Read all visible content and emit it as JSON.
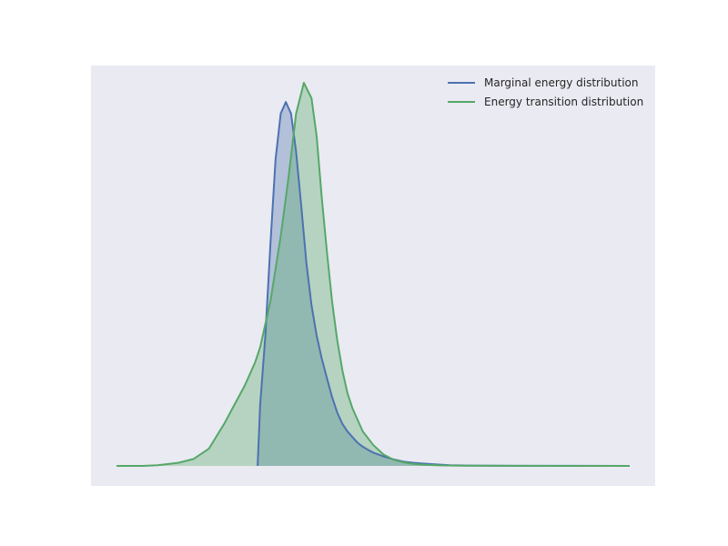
{
  "chart_data": {
    "type": "area",
    "title": "",
    "xlabel": "",
    "ylabel": "",
    "x_ticks_shown": false,
    "y_ticks_shown": false,
    "grid": false,
    "legend_position": "top-right",
    "background": "#eaeaf2",
    "xlim": [
      0,
      100
    ],
    "ylim": [
      0,
      1.05
    ],
    "series": [
      {
        "name": "Marginal energy distribution",
        "color": "#4c72b0",
        "fill": "#4c72b0",
        "fill_opacity": 0.35,
        "x": [
          27.5,
          28.0,
          29.0,
          30.0,
          31.0,
          32.0,
          33.0,
          34.0,
          35.0,
          36.0,
          37.0,
          38.0,
          39.0,
          40.0,
          41.0,
          42.0,
          43.0,
          44.0,
          45.0,
          46.0,
          47.0,
          48.0,
          49.0,
          50.0,
          52.0,
          54.0,
          56.0,
          58.0,
          60.0,
          62.0,
          65.0,
          68.0,
          72.0,
          77.0,
          85.0,
          100.0
        ],
        "y": [
          0.0,
          0.16,
          0.34,
          0.58,
          0.8,
          0.92,
          0.95,
          0.92,
          0.82,
          0.68,
          0.53,
          0.42,
          0.34,
          0.28,
          0.23,
          0.18,
          0.14,
          0.11,
          0.09,
          0.075,
          0.06,
          0.05,
          0.042,
          0.035,
          0.025,
          0.017,
          0.011,
          0.008,
          0.006,
          0.004,
          0.002,
          0.001,
          0.0005,
          0.0003,
          0.0002,
          0.0
        ]
      },
      {
        "name": "Energy transition distribution",
        "color": "#55a868",
        "fill": "#55a868",
        "fill_opacity": 0.35,
        "x": [
          0.0,
          5.0,
          8.0,
          12.0,
          15.0,
          18.0,
          21.0,
          23.0,
          25.0,
          27.0,
          28.0,
          30.0,
          32.0,
          33.5,
          35.0,
          36.5,
          38.0,
          39.0,
          40.0,
          41.0,
          42.0,
          43.0,
          44.0,
          45.0,
          46.0,
          48.0,
          50.0,
          52.0,
          54.0,
          56.0,
          58.0,
          60.0,
          63.0,
          67.0,
          72.0,
          78.0,
          85.0,
          92.0,
          100.0
        ],
        "y": [
          0.0,
          0.0,
          0.002,
          0.008,
          0.018,
          0.045,
          0.11,
          0.16,
          0.21,
          0.27,
          0.31,
          0.43,
          0.6,
          0.75,
          0.92,
          1.0,
          0.96,
          0.86,
          0.7,
          0.56,
          0.43,
          0.33,
          0.25,
          0.19,
          0.15,
          0.09,
          0.055,
          0.03,
          0.016,
          0.009,
          0.005,
          0.003,
          0.0015,
          0.0008,
          0.0004,
          0.0002,
          0.0001,
          5e-05,
          0.0
        ]
      }
    ]
  }
}
